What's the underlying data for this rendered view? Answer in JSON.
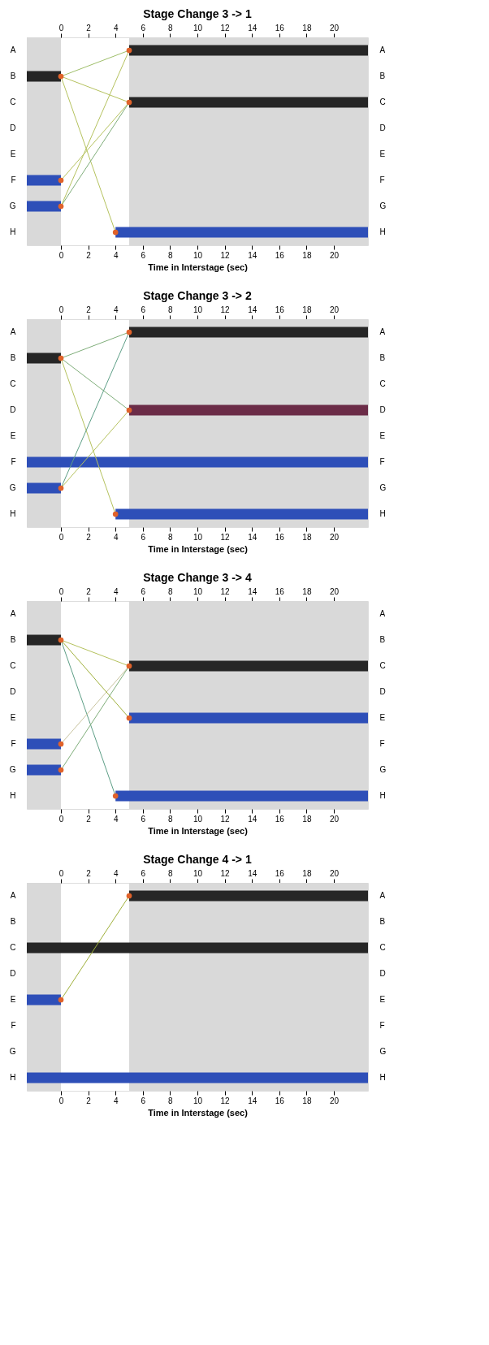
{
  "chart_data": [
    {
      "type": "bar",
      "orientation": "horizontal",
      "title": "Stage Change 3 -> 1",
      "xlabel": "Time in Interstage (sec)",
      "categories": [
        "A",
        "B",
        "C",
        "D",
        "E",
        "F",
        "G",
        "H"
      ],
      "y2_categories": [
        "A",
        "B",
        "C",
        "D",
        "E",
        "F",
        "G",
        "H"
      ],
      "xlim": [
        -2.5,
        22.5
      ],
      "xticks": [
        0,
        2,
        4,
        6,
        8,
        10,
        12,
        14,
        16,
        18,
        20
      ],
      "x2lim": [
        -2.5,
        22.5
      ],
      "x2ticks": [
        0,
        2,
        4,
        6,
        8,
        10,
        12,
        14,
        16,
        18,
        20
      ],
      "grid": false,
      "bands": [
        {
          "axis": "x",
          "from": -2.5,
          "to": 0,
          "color": "#d9d9d9"
        },
        {
          "axis": "x",
          "from": 5,
          "to": 22.5,
          "color": "#d9d9d9"
        }
      ],
      "series": [
        {
          "type": "bar",
          "base": [
            5,
            -2.5,
            5,
            null,
            null,
            -2.5,
            -2.5,
            4
          ],
          "values": [
            17.5,
            2.5,
            17.5,
            null,
            null,
            2.5,
            2.5,
            18.5
          ],
          "colors": [
            "#262626",
            "#262626",
            "#262626",
            null,
            null,
            "#2e4fb8",
            "#2e4fb8",
            "#2e4fb8"
          ]
        },
        {
          "type": "line",
          "line_style": "solid",
          "values": [
            5,
            0,
            null,
            null,
            null,
            null,
            null,
            null
          ],
          "color": "#9fbf6a"
        },
        {
          "type": "line",
          "line_style": "solid",
          "values": [
            null,
            0,
            5,
            null,
            null,
            null,
            null,
            null
          ],
          "color": "#b5c25e"
        },
        {
          "type": "line",
          "line_style": "solid",
          "values": [
            null,
            0,
            null,
            null,
            null,
            null,
            null,
            4
          ],
          "color": "#b5c25e"
        },
        {
          "type": "line",
          "line_style": "solid",
          "values": [
            null,
            null,
            5,
            null,
            null,
            0,
            null,
            null
          ],
          "color": "#b5c25e"
        },
        {
          "type": "line",
          "line_style": "solid",
          "values": [
            null,
            null,
            5,
            null,
            null,
            null,
            0,
            null
          ],
          "color": "#7fae7a"
        },
        {
          "type": "line",
          "line_style": "solid",
          "values": [
            5,
            null,
            null,
            null,
            null,
            null,
            0,
            null
          ],
          "color": "#b5c25e"
        },
        {
          "type": "scatter",
          "marker": "circle",
          "values": [
            5,
            0,
            5,
            null,
            null,
            0,
            0,
            4
          ],
          "color": "#e0622a"
        }
      ]
    },
    {
      "type": "bar",
      "orientation": "horizontal",
      "title": "Stage Change 3 -> 2",
      "xlabel": "Time in Interstage (sec)",
      "categories": [
        "A",
        "B",
        "C",
        "D",
        "E",
        "F",
        "G",
        "H"
      ],
      "y2_categories": [
        "A",
        "B",
        "C",
        "D",
        "E",
        "F",
        "G",
        "H"
      ],
      "xlim": [
        -2.5,
        22.5
      ],
      "xticks": [
        0,
        2,
        4,
        6,
        8,
        10,
        12,
        14,
        16,
        18,
        20
      ],
      "x2lim": [
        -2.5,
        22.5
      ],
      "x2ticks": [
        0,
        2,
        4,
        6,
        8,
        10,
        12,
        14,
        16,
        18,
        20
      ],
      "grid": false,
      "bands": [
        {
          "axis": "x",
          "from": -2.5,
          "to": 0,
          "color": "#d9d9d9"
        },
        {
          "axis": "x",
          "from": 5,
          "to": 22.5,
          "color": "#d9d9d9"
        }
      ],
      "series": [
        {
          "type": "bar",
          "base": [
            5,
            -2.5,
            null,
            5,
            null,
            -2.5,
            -2.5,
            4
          ],
          "values": [
            17.5,
            2.5,
            null,
            17.5,
            null,
            25,
            2.5,
            18.5
          ],
          "colors": [
            "#262626",
            "#262626",
            null,
            "#6b2c47",
            null,
            "#2e4fb8",
            "#2e4fb8",
            "#2e4fb8"
          ]
        },
        {
          "type": "line",
          "line_style": "solid",
          "values": [
            5,
            0,
            null,
            null,
            null,
            null,
            null,
            null
          ],
          "color": "#7fae7a"
        },
        {
          "type": "line",
          "line_style": "solid",
          "values": [
            null,
            0,
            null,
            5,
            null,
            null,
            null,
            null
          ],
          "color": "#7fae7a"
        },
        {
          "type": "line",
          "line_style": "solid",
          "values": [
            null,
            0,
            null,
            null,
            null,
            null,
            null,
            4
          ],
          "color": "#b5c25e"
        },
        {
          "type": "line",
          "line_style": "solid",
          "values": [
            5,
            null,
            null,
            null,
            null,
            null,
            0,
            null
          ],
          "color": "#5d9e86"
        },
        {
          "type": "line",
          "line_style": "solid",
          "values": [
            null,
            null,
            null,
            5,
            null,
            null,
            0,
            null
          ],
          "color": "#b5c25e"
        },
        {
          "type": "scatter",
          "marker": "circle",
          "values": [
            5,
            0,
            null,
            5,
            null,
            null,
            0,
            4
          ],
          "color": "#e0622a"
        }
      ]
    },
    {
      "type": "bar",
      "orientation": "horizontal",
      "title": "Stage Change 3 -> 4",
      "xlabel": "Time in Interstage (sec)",
      "categories": [
        "A",
        "B",
        "C",
        "D",
        "E",
        "F",
        "G",
        "H"
      ],
      "y2_categories": [
        "A",
        "B",
        "C",
        "D",
        "E",
        "F",
        "G",
        "H"
      ],
      "xlim": [
        -2.5,
        22.5
      ],
      "xticks": [
        0,
        2,
        4,
        6,
        8,
        10,
        12,
        14,
        16,
        18,
        20
      ],
      "x2lim": [
        -2.5,
        22.5
      ],
      "x2ticks": [
        0,
        2,
        4,
        6,
        8,
        10,
        12,
        14,
        16,
        18,
        20
      ],
      "grid": false,
      "bands": [
        {
          "axis": "x",
          "from": -2.5,
          "to": 0,
          "color": "#d9d9d9"
        },
        {
          "axis": "x",
          "from": 5,
          "to": 22.5,
          "color": "#d9d9d9"
        }
      ],
      "series": [
        {
          "type": "bar",
          "base": [
            null,
            -2.5,
            5,
            null,
            5,
            -2.5,
            -2.5,
            4
          ],
          "values": [
            null,
            2.5,
            17.5,
            null,
            17.5,
            2.5,
            2.5,
            18.5
          ],
          "colors": [
            null,
            "#262626",
            "#262626",
            null,
            "#2e4fb8",
            "#2e4fb8",
            "#2e4fb8",
            "#2e4fb8"
          ]
        },
        {
          "type": "line",
          "line_style": "solid",
          "values": [
            null,
            0,
            5,
            null,
            null,
            null,
            null,
            null
          ],
          "color": "#b5c25e"
        },
        {
          "type": "line",
          "line_style": "solid",
          "values": [
            null,
            0,
            null,
            null,
            5,
            null,
            null,
            null
          ],
          "color": "#9fb03a"
        },
        {
          "type": "line",
          "line_style": "solid",
          "values": [
            null,
            0,
            null,
            null,
            null,
            null,
            null,
            4
          ],
          "color": "#5d9e86"
        },
        {
          "type": "line",
          "line_style": "solid",
          "values": [
            null,
            null,
            5,
            null,
            null,
            0,
            null,
            null
          ],
          "color": "#c9c4a0"
        },
        {
          "type": "line",
          "line_style": "solid",
          "values": [
            null,
            null,
            5,
            null,
            null,
            null,
            0,
            null
          ],
          "color": "#7fae7a"
        },
        {
          "type": "scatter",
          "marker": "circle",
          "values": [
            null,
            0,
            5,
            null,
            5,
            0,
            0,
            4
          ],
          "color": "#e0622a"
        }
      ]
    },
    {
      "type": "bar",
      "orientation": "horizontal",
      "title": "Stage Change 4 -> 1",
      "xlabel": "Time in Interstage (sec)",
      "categories": [
        "A",
        "B",
        "C",
        "D",
        "E",
        "F",
        "G",
        "H"
      ],
      "y2_categories": [
        "A",
        "B",
        "C",
        "D",
        "E",
        "F",
        "G",
        "H"
      ],
      "xlim": [
        -2.5,
        22.5
      ],
      "xticks": [
        0,
        2,
        4,
        6,
        8,
        10,
        12,
        14,
        16,
        18,
        20
      ],
      "x2lim": [
        -2.5,
        22.5
      ],
      "x2ticks": [
        0,
        2,
        4,
        6,
        8,
        10,
        12,
        14,
        16,
        18,
        20
      ],
      "grid": false,
      "bands": [
        {
          "axis": "x",
          "from": -2.5,
          "to": 0,
          "color": "#d9d9d9"
        },
        {
          "axis": "x",
          "from": 5,
          "to": 22.5,
          "color": "#d9d9d9"
        }
      ],
      "series": [
        {
          "type": "bar",
          "base": [
            5,
            null,
            -2.5,
            null,
            -2.5,
            null,
            null,
            -2.5
          ],
          "values": [
            17.5,
            null,
            25,
            null,
            2.5,
            null,
            null,
            25
          ],
          "colors": [
            "#262626",
            null,
            "#262626",
            null,
            "#2e4fb8",
            null,
            null,
            "#2e4fb8"
          ]
        },
        {
          "type": "line",
          "line_style": "solid",
          "values": [
            5,
            null,
            null,
            null,
            0,
            null,
            null,
            null
          ],
          "color": "#9fb03a"
        },
        {
          "type": "scatter",
          "marker": "circle",
          "values": [
            5,
            null,
            null,
            null,
            0,
            null,
            null,
            null
          ],
          "color": "#e0622a"
        }
      ]
    }
  ]
}
